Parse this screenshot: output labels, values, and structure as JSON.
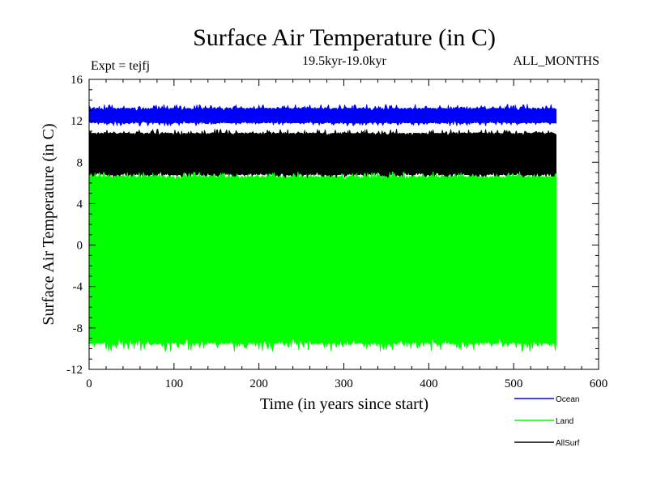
{
  "chart_data": {
    "type": "line",
    "title": "Surface Air Temperature (in C)",
    "subtitle": "19.5kyr-19.0kyr",
    "experiment_label": "Expt = tejfj",
    "months_label": "ALL_MONTHS",
    "xlabel": "Time (in years since start)",
    "ylabel": "Surface Air Temperature (in C)",
    "xlim": [
      0,
      600
    ],
    "ylim": [
      -12,
      16
    ],
    "x_ticks": [
      "0",
      "100",
      "200",
      "300",
      "400",
      "500",
      "600"
    ],
    "y_ticks": [
      "16",
      "12",
      "8",
      "4",
      "0",
      "-4",
      "-8",
      "-12"
    ],
    "x_tick_values": [
      0,
      100,
      200,
      300,
      400,
      500,
      600
    ],
    "y_tick_values": [
      16,
      12,
      8,
      4,
      0,
      -4,
      -8,
      -12
    ],
    "grid": false,
    "legend_position": "bottom-right",
    "x_end": 550,
    "series": [
      {
        "name": "AllSurf",
        "color": "#000000",
        "annual_cycle_low": 6.8,
        "annual_cycle_high": 10.8,
        "peak_low": 6.3,
        "peak_high": 11.2
      },
      {
        "name": "Ocean",
        "color": "#0000ff",
        "annual_cycle_low": 11.8,
        "annual_cycle_high": 13.2,
        "peak_low": 11.5,
        "peak_high": 13.6
      },
      {
        "name": "Land",
        "color": "#00ff00",
        "annual_cycle_low": -9.5,
        "annual_cycle_high": 6.6,
        "peak_low": -10.3,
        "peak_high": 7.1
      }
    ],
    "legend": [
      {
        "name": "Ocean",
        "color": "#0000ff"
      },
      {
        "name": "Land",
        "color": "#00ff00"
      },
      {
        "name": "AllSurf",
        "color": "#000000"
      }
    ]
  }
}
